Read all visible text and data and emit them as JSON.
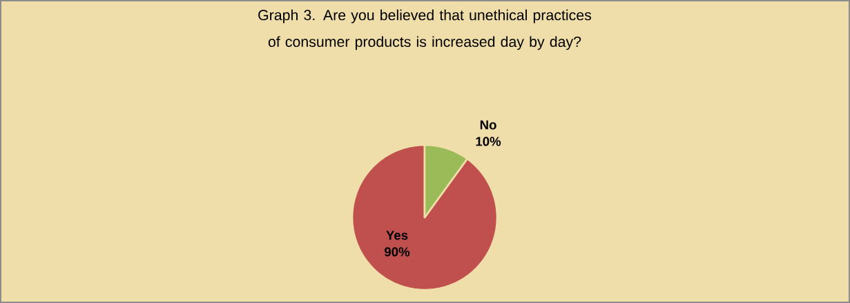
{
  "chart_data": {
    "type": "pie",
    "title": "Graph 3. Are you believed that unethical practices of consumer products is increased day by day?",
    "categories": [
      "Yes",
      "No"
    ],
    "values": [
      90,
      10
    ],
    "colors": [
      "#c0504d",
      "#9bbb59"
    ],
    "value_labels": [
      "90%",
      "10%"
    ]
  }
}
